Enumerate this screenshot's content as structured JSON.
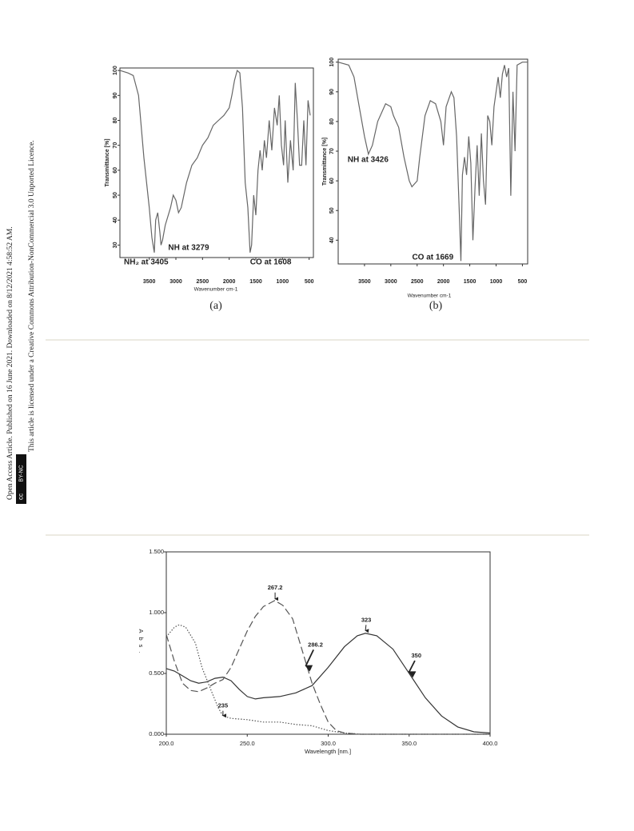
{
  "sidebar": {
    "line1": "Open Access Article. Published on 16 June 2021. Downloaded on 8/12/2021 4:58:52 AM.",
    "line2": "This article is licensed under a Creative Commons Attribution-NonCommercial 3.0 Unported Licence.",
    "badge_cc": "cc",
    "badge_text": "BY-NC"
  },
  "chart_data": [
    {
      "type": "line",
      "caption": "(a)",
      "x_label": "Wavenumber cm-1",
      "y_label": "Transmittance [%]",
      "xlim": [
        4050,
        420
      ],
      "ylim": [
        25,
        101
      ],
      "xticks": [
        3500,
        3000,
        2500,
        2000,
        1500,
        1000,
        500
      ],
      "yticks": [
        30,
        40,
        50,
        60,
        70,
        80,
        90,
        100
      ],
      "series": [
        {
          "color": "#666666",
          "x": [
            4050,
            3900,
            3800,
            3700,
            3600,
            3500,
            3450,
            3405,
            3380,
            3340,
            3300,
            3279,
            3250,
            3200,
            3100,
            3050,
            3000,
            2950,
            2900,
            2800,
            2700,
            2600,
            2500,
            2400,
            2300,
            2200,
            2100,
            2000,
            1950,
            1900,
            1850,
            1800,
            1750,
            1700,
            1650,
            1608,
            1580,
            1540,
            1500,
            1460,
            1420,
            1380,
            1340,
            1300,
            1250,
            1200,
            1150,
            1100,
            1060,
            1020,
            980,
            950,
            900,
            850,
            800,
            760,
            720,
            680,
            640,
            600,
            560,
            520,
            480
          ],
          "values": [
            100,
            99,
            98,
            90,
            65,
            45,
            33,
            27,
            40,
            43,
            35,
            30,
            32,
            38,
            45,
            50,
            48,
            43,
            45,
            55,
            62,
            65,
            70,
            73,
            78,
            80,
            82,
            85,
            90,
            96,
            100,
            99,
            85,
            55,
            45,
            27,
            30,
            50,
            42,
            60,
            68,
            60,
            72,
            65,
            80,
            68,
            85,
            78,
            90,
            70,
            62,
            80,
            55,
            72,
            60,
            95,
            80,
            62,
            62,
            80,
            62,
            88,
            82
          ]
        }
      ],
      "annotations": [
        {
          "label": "NH₂ at 3405",
          "x": 3405
        },
        {
          "label": "NH at 3279",
          "x": 3279
        },
        {
          "label": "CO at 1608",
          "x": 1608
        }
      ]
    },
    {
      "type": "line",
      "caption": "(b)",
      "x_label": "Wavenumber cm-1",
      "y_label": "Transmittance [%]",
      "xlim": [
        4000,
        400
      ],
      "ylim": [
        32,
        101
      ],
      "xticks": [
        3500,
        3000,
        2500,
        2000,
        1500,
        1000,
        500
      ],
      "yticks": [
        40,
        50,
        60,
        70,
        80,
        90,
        100
      ],
      "series": [
        {
          "color": "#666666",
          "x": [
            4000,
            3800,
            3700,
            3600,
            3500,
            3426,
            3350,
            3250,
            3100,
            3000,
            2950,
            2850,
            2750,
            2650,
            2600,
            2500,
            2450,
            2350,
            2250,
            2150,
            2050,
            2000,
            1950,
            1850,
            1800,
            1750,
            1700,
            1669,
            1640,
            1600,
            1560,
            1520,
            1480,
            1440,
            1400,
            1360,
            1320,
            1280,
            1240,
            1200,
            1160,
            1120,
            1080,
            1040,
            1000,
            960,
            920,
            880,
            840,
            800,
            760,
            720,
            680,
            640,
            600,
            500,
            400
          ],
          "values": [
            100,
            99,
            95,
            85,
            75,
            69,
            72,
            80,
            86,
            85,
            82,
            78,
            68,
            60,
            58,
            60,
            68,
            82,
            87,
            86,
            80,
            72,
            85,
            90,
            88,
            75,
            50,
            33,
            62,
            68,
            62,
            75,
            66,
            40,
            58,
            72,
            55,
            76,
            60,
            52,
            82,
            80,
            72,
            85,
            90,
            95,
            88,
            96,
            99,
            95,
            98,
            55,
            90,
            70,
            99,
            100,
            100
          ]
        }
      ],
      "annotations": [
        {
          "label": "NH at 3426",
          "x": 3426
        },
        {
          "label": "CO at 1669",
          "x": 1669
        }
      ]
    },
    {
      "type": "line",
      "x_label": "Wavelength [nm.]",
      "y_label": "Abs.",
      "xlim": [
        200,
        400
      ],
      "ylim": [
        0,
        1.5
      ],
      "xticks": [
        {
          "value": 200,
          "label": "200.0"
        },
        {
          "value": 250,
          "label": "250.0"
        },
        {
          "value": 300,
          "label": "300.0"
        },
        {
          "value": 350,
          "label": "350.0"
        },
        {
          "value": 400,
          "label": "400.0"
        }
      ],
      "yticks": [
        {
          "value": 0,
          "label": "0.000"
        },
        {
          "value": 0.5,
          "label": "0.500"
        },
        {
          "value": 1,
          "label": "1.000"
        },
        {
          "value": 1.5,
          "label": "1.500"
        }
      ],
      "series": [
        {
          "color": "#333333",
          "dash": "solid",
          "x": [
            200,
            205,
            210,
            215,
            220,
            225,
            230,
            235,
            240,
            245,
            250,
            255,
            260,
            270,
            280,
            290,
            300,
            310,
            318,
            323,
            330,
            340,
            350,
            360,
            370,
            380,
            390,
            400
          ],
          "values": [
            0.54,
            0.52,
            0.48,
            0.44,
            0.42,
            0.43,
            0.46,
            0.47,
            0.44,
            0.37,
            0.31,
            0.29,
            0.3,
            0.31,
            0.34,
            0.4,
            0.55,
            0.72,
            0.81,
            0.83,
            0.81,
            0.7,
            0.5,
            0.3,
            0.15,
            0.06,
            0.02,
            0.01
          ]
        },
        {
          "color": "#555555",
          "dash": "dashed",
          "x": [
            200,
            205,
            210,
            215,
            220,
            225,
            230,
            235,
            240,
            245,
            250,
            255,
            260,
            267,
            272,
            278,
            286,
            290,
            295,
            300,
            305,
            310,
            320,
            400
          ],
          "values": [
            0.82,
            0.6,
            0.42,
            0.36,
            0.35,
            0.38,
            0.42,
            0.45,
            0.55,
            0.7,
            0.85,
            0.97,
            1.05,
            1.1,
            1.06,
            0.95,
            0.6,
            0.42,
            0.25,
            0.1,
            0.03,
            0.01,
            0,
            0
          ]
        },
        {
          "color": "#555555",
          "dash": "dotted",
          "x": [
            200,
            205,
            208,
            212,
            218,
            222,
            228,
            232,
            235,
            240,
            250,
            260,
            270,
            280,
            290,
            300,
            310,
            320,
            400
          ],
          "values": [
            0.8,
            0.88,
            0.9,
            0.88,
            0.75,
            0.55,
            0.35,
            0.22,
            0.15,
            0.13,
            0.12,
            0.1,
            0.1,
            0.08,
            0.07,
            0.03,
            0.01,
            0,
            0
          ]
        }
      ],
      "annotations": [
        {
          "label": "267.2",
          "x": 267.2,
          "y": 1.1
        },
        {
          "label": "286.2",
          "x": 286.2,
          "y": 0.55
        },
        {
          "label": "323",
          "x": 323,
          "y": 0.84
        },
        {
          "label": "350",
          "x": 350,
          "y": 0.5
        },
        {
          "label": "235",
          "x": 235,
          "y": 0.14
        }
      ]
    }
  ]
}
